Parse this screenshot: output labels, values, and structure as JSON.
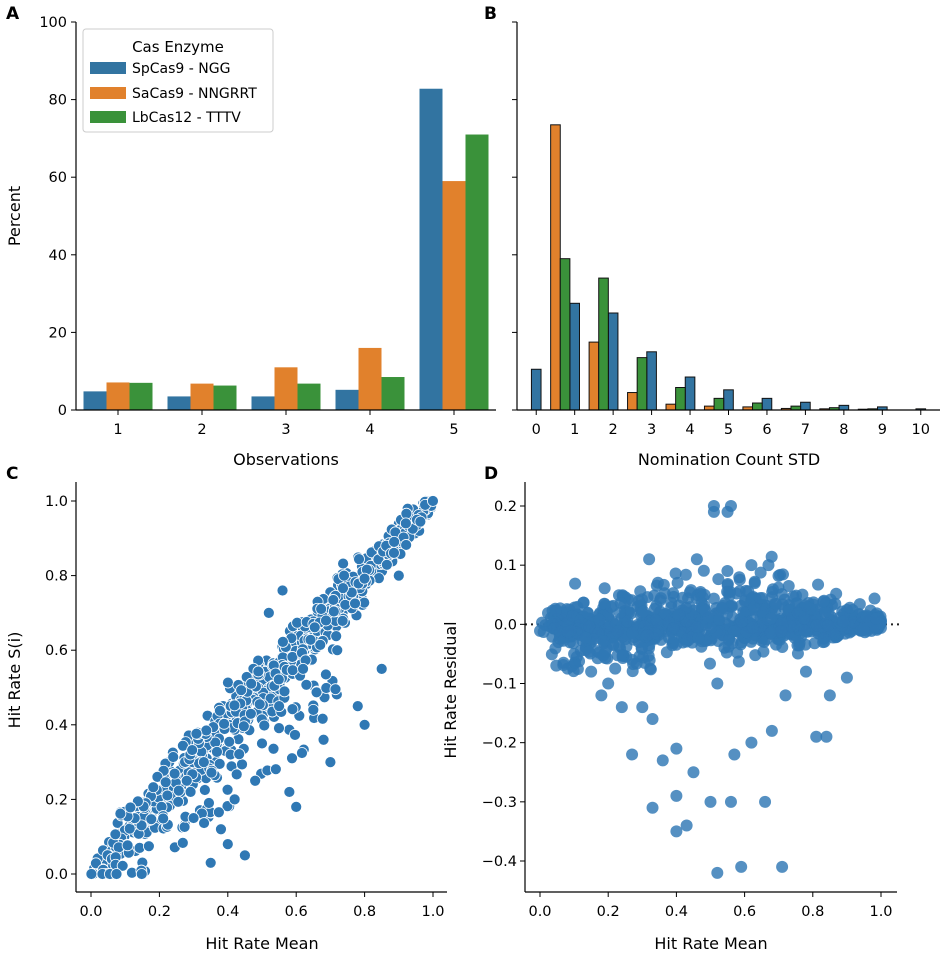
{
  "panels": {
    "A": "A",
    "B": "B",
    "C": "C",
    "D": "D"
  },
  "colors": {
    "spcas9": "#3274a1",
    "sacas9": "#e1812c",
    "lbcas12": "#3a923a",
    "scatter": "#2f78b4"
  },
  "chart_data": [
    {
      "id": "A",
      "type": "bar",
      "xlabel": "Observations",
      "ylabel": "Percent",
      "ylim": [
        0,
        100
      ],
      "yticks": [
        0,
        20,
        40,
        60,
        80,
        100
      ],
      "categories": [
        "1",
        "2",
        "3",
        "4",
        "5"
      ],
      "legend": {
        "title": "Cas Enzyme",
        "placement": "top-left"
      },
      "series": [
        {
          "name": "SpCas9 - NGG",
          "color_key": "spcas9",
          "values": [
            4.8,
            3.5,
            3.5,
            5.2,
            82.8
          ]
        },
        {
          "name": "SaCas9 - NNGRRT",
          "color_key": "sacas9",
          "values": [
            7.1,
            6.8,
            11.0,
            16.0,
            59.0
          ]
        },
        {
          "name": "LbCas12 - TTTV",
          "color_key": "lbcas12",
          "values": [
            7.0,
            6.3,
            6.8,
            8.5,
            71.0
          ]
        }
      ]
    },
    {
      "id": "B",
      "type": "bar",
      "xlabel": "Nomination Count STD",
      "ylabel": "",
      "ylim": [
        0,
        100
      ],
      "xlim": [
        -0.5,
        10.5
      ],
      "xticks": [
        0,
        1,
        2,
        3,
        4,
        5,
        6,
        7,
        8,
        9,
        10
      ],
      "bin_width": 0.5,
      "series": [
        {
          "name": "SpCas9 - NGG",
          "color_key": "spcas9",
          "bins": [
            [
              0.0,
              10.5
            ],
            [
              1.0,
              27.5
            ],
            [
              2.0,
              25.0
            ],
            [
              3.0,
              15.0
            ],
            [
              4.0,
              8.5
            ],
            [
              5.0,
              5.2
            ],
            [
              6.0,
              3.0
            ],
            [
              7.0,
              2.0
            ],
            [
              8.0,
              1.2
            ],
            [
              9.0,
              0.8
            ],
            [
              10.0,
              0.3
            ]
          ]
        },
        {
          "name": "SaCas9 - NNGRRT",
          "color_key": "sacas9",
          "bins": [
            [
              0.5,
              73.5
            ],
            [
              1.5,
              17.5
            ],
            [
              2.5,
              4.5
            ],
            [
              3.5,
              1.5
            ],
            [
              4.5,
              1.0
            ],
            [
              5.5,
              0.8
            ],
            [
              6.5,
              0.4
            ],
            [
              7.5,
              0.3
            ],
            [
              8.5,
              0.2
            ]
          ]
        },
        {
          "name": "LbCas12 - TTTV",
          "color_key": "lbcas12",
          "bins": [
            [
              0.75,
              39.0
            ],
            [
              1.75,
              34.0
            ],
            [
              2.75,
              13.5
            ],
            [
              3.75,
              5.8
            ],
            [
              4.75,
              3.0
            ],
            [
              5.75,
              1.8
            ],
            [
              6.75,
              1.0
            ],
            [
              7.75,
              0.6
            ],
            [
              8.75,
              0.3
            ]
          ]
        }
      ]
    },
    {
      "id": "C",
      "type": "scatter",
      "xlabel": "Hit Rate Mean",
      "ylabel": "Hit Rate S(i)",
      "xlim": [
        0,
        1
      ],
      "ylim": [
        0,
        1
      ],
      "xticks": [
        0.0,
        0.2,
        0.4,
        0.6,
        0.8,
        1.0
      ],
      "yticks": [
        0.0,
        0.2,
        0.4,
        0.6,
        0.8,
        1.0
      ],
      "tick_labels": [
        "0.0",
        "0.2",
        "0.4",
        "0.6",
        "0.8",
        "1.0"
      ],
      "outliers": [
        [
          0.4,
          0.08
        ],
        [
          0.45,
          0.05
        ],
        [
          0.5,
          0.35
        ],
        [
          0.6,
          0.18
        ],
        [
          0.62,
          0.55
        ],
        [
          0.7,
          0.3
        ],
        [
          0.72,
          0.6
        ],
        [
          0.55,
          0.45
        ],
        [
          0.65,
          0.44
        ],
        [
          0.78,
          0.45
        ],
        [
          0.8,
          0.4
        ],
        [
          0.85,
          0.55
        ],
        [
          0.52,
          0.7
        ],
        [
          0.56,
          0.76
        ],
        [
          0.68,
          0.36
        ],
        [
          0.9,
          0.8
        ],
        [
          0.3,
          0.15
        ],
        [
          0.35,
          0.03
        ],
        [
          0.28,
          0.25
        ],
        [
          0.42,
          0.2
        ],
        [
          0.74,
          0.8
        ],
        [
          0.48,
          0.25
        ],
        [
          0.58,
          0.22
        ],
        [
          0.38,
          0.12
        ],
        [
          0.33,
          0.3
        ]
      ]
    },
    {
      "id": "D",
      "type": "scatter",
      "xlabel": "Hit Rate Mean",
      "ylabel": "Hit Rate Residual",
      "xlim": [
        0,
        1
      ],
      "ylim": [
        -0.43,
        0.22
      ],
      "xticks": [
        0.0,
        0.2,
        0.4,
        0.6,
        0.8,
        1.0
      ],
      "x_tick_labels": [
        "0.0",
        "0.2",
        "0.4",
        "0.6",
        "0.8",
        "1.0"
      ],
      "yticks": [
        -0.4,
        -0.3,
        -0.2,
        -0.1,
        0.0,
        0.1,
        0.2
      ],
      "y_tick_labels": [
        "−0.4",
        "−0.3",
        "−0.2",
        "−0.1",
        "0.0",
        "0.1",
        "0.2"
      ],
      "reference_line": 0.0,
      "outliers": [
        [
          0.52,
          -0.42
        ],
        [
          0.59,
          -0.41
        ],
        [
          0.71,
          -0.41
        ],
        [
          0.4,
          -0.35
        ],
        [
          0.43,
          -0.34
        ],
        [
          0.33,
          -0.31
        ],
        [
          0.4,
          -0.29
        ],
        [
          0.56,
          -0.3
        ],
        [
          0.66,
          -0.3
        ],
        [
          0.5,
          -0.3
        ],
        [
          0.45,
          -0.25
        ],
        [
          0.27,
          -0.22
        ],
        [
          0.36,
          -0.23
        ],
        [
          0.4,
          -0.21
        ],
        [
          0.57,
          -0.22
        ],
        [
          0.62,
          -0.2
        ],
        [
          0.68,
          -0.18
        ],
        [
          0.81,
          -0.19
        ],
        [
          0.84,
          -0.19
        ],
        [
          0.72,
          -0.12
        ],
        [
          0.52,
          -0.1
        ],
        [
          0.33,
          -0.16
        ],
        [
          0.15,
          -0.08
        ],
        [
          0.18,
          -0.12
        ],
        [
          0.24,
          -0.14
        ],
        [
          0.51,
          0.2
        ],
        [
          0.56,
          0.2
        ],
        [
          0.55,
          0.19
        ],
        [
          0.51,
          0.19
        ],
        [
          0.32,
          0.11
        ],
        [
          0.46,
          0.11
        ],
        [
          0.62,
          0.1
        ],
        [
          0.67,
          0.1
        ],
        [
          0.9,
          -0.09
        ],
        [
          0.85,
          -0.12
        ],
        [
          0.27,
          -0.06
        ],
        [
          0.1,
          -0.05
        ],
        [
          0.2,
          -0.1
        ],
        [
          0.78,
          -0.08
        ],
        [
          0.3,
          -0.14
        ]
      ]
    }
  ]
}
